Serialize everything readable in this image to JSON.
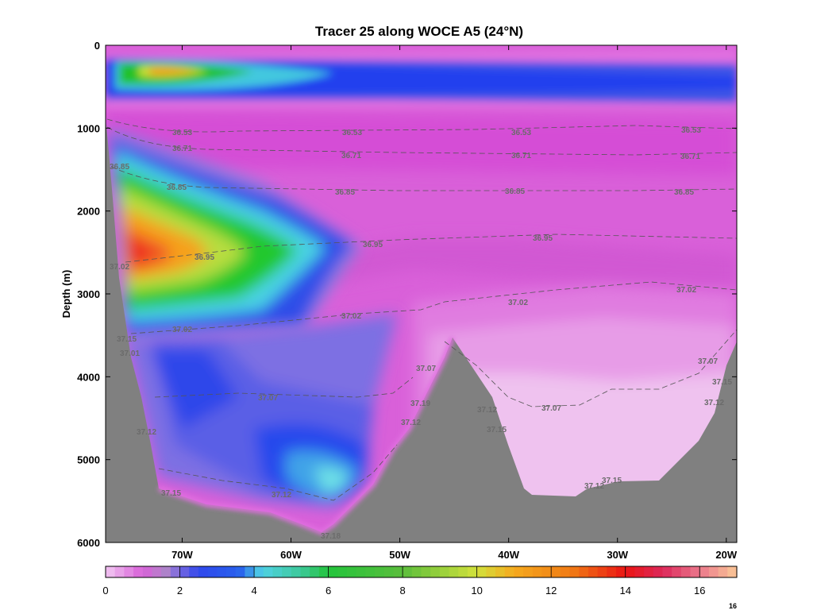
{
  "chart_data": {
    "type": "heatmap",
    "title": "Tracer 25 along WOCE A5 (24°N)",
    "xlabel": "",
    "ylabel": "Depth (m)",
    "x_ticks": [
      "70W",
      "60W",
      "50W",
      "40W",
      "30W",
      "20W"
    ],
    "y_ticks": [
      "0",
      "1000",
      "2000",
      "3000",
      "4000",
      "5000",
      "6000"
    ],
    "ylim": [
      6000,
      0
    ],
    "xlim": [
      "77W",
      "19W"
    ],
    "colorbar": {
      "ticks": [
        "0",
        "2",
        "4",
        "6",
        "8",
        "10",
        "12",
        "14",
        "16"
      ],
      "range": [
        0,
        17
      ],
      "max_label": "16"
    },
    "tracer_max": {
      "value": 16.5,
      "location": "76W",
      "depth": 2550
    },
    "isopycnals": [
      {
        "label": "36.53",
        "depths": [
          1050,
          1050,
          1030,
          1020,
          1000
        ]
      },
      {
        "label": "36.71",
        "depths": [
          1250,
          1300,
          1310,
          1310,
          1290
        ]
      },
      {
        "label": "36.85",
        "depths": [
          1700,
          1740,
          1730,
          1730,
          1720
        ]
      },
      {
        "label": "36.95",
        "depths": [
          2550,
          2420,
          2300,
          2250,
          2300
        ]
      },
      {
        "label": "37.02",
        "depths": [
          3420,
          3250,
          3080,
          2900,
          2950
        ]
      },
      {
        "label": "37.07",
        "depths": [
          4250,
          4220,
          4300,
          4150,
          3850
        ]
      },
      {
        "label": "37.12",
        "depths": [
          5150,
          5450,
          4700,
          4500,
          4300
        ]
      }
    ],
    "contour_labels": [
      "36.53",
      "36.53",
      "36.53",
      "36.53",
      "36.71",
      "36.71",
      "36.71",
      "36.71",
      "36.85",
      "36.85",
      "36.85",
      "36.85",
      "36.85",
      "36.95",
      "36.95",
      "36.95",
      "37.02",
      "37.02",
      "37.02",
      "37.02",
      "37.02",
      "37.07",
      "37.07",
      "37.07",
      "37.07",
      "37.12",
      "37.12",
      "37.12",
      "37.12",
      "37.12",
      "37.12",
      "37.15",
      "37.15",
      "37.15",
      "37.15",
      "37.15",
      "37.18",
      "37.19",
      "37.01"
    ]
  },
  "colors": {
    "bathymetry": "#808080",
    "background_low": "#d960d9",
    "contour_line": "#555555",
    "contour_label": "#6b6b6b"
  }
}
